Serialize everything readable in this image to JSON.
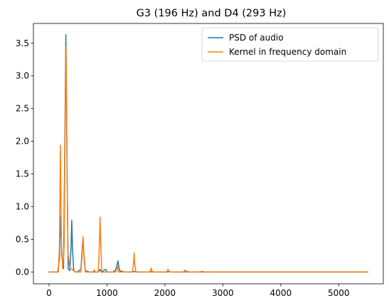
{
  "chart_data": {
    "type": "line",
    "title": "G3 (196 Hz) and D4 (293 Hz)",
    "xlabel": "",
    "ylabel": "",
    "xlim": [
      -270,
      5770
    ],
    "ylim": [
      -0.181,
      3.802
    ],
    "xticks": [
      0,
      1000,
      2000,
      3000,
      4000,
      5000
    ],
    "xtick_labels": [
      "0",
      "1000",
      "2000",
      "3000",
      "4000",
      "5000"
    ],
    "yticks": [
      0.0,
      0.5,
      1.0,
      1.5,
      2.0,
      2.5,
      3.0,
      3.5
    ],
    "ytick_labels": [
      "0.0",
      "0.5",
      "1.0",
      "1.5",
      "2.0",
      "2.5",
      "3.0",
      "3.5"
    ],
    "grid": false,
    "legend": {
      "position": "top-right"
    },
    "series": [
      {
        "name": "PSD of audio",
        "color": "#1f77b4",
        "x": [
          0,
          150,
          180,
          200,
          220,
          250,
          270,
          290,
          310,
          330,
          360,
          380,
          392,
          405,
          425,
          450,
          480,
          550,
          575,
          587,
          600,
          625,
          700,
          850,
          880,
          900,
          930,
          950,
          980,
          1000,
          1030,
          1100,
          1150,
          1175,
          1190,
          1200,
          1220,
          1300,
          1450,
          1470,
          1500,
          1750,
          1770,
          1800,
          2050,
          2070,
          2100,
          2350,
          2380,
          2410,
          2700,
          5500
        ],
        "y": [
          0.0,
          0.0,
          0.2,
          0.85,
          0.25,
          0.05,
          1.8,
          3.63,
          1.6,
          0.05,
          0.02,
          0.4,
          0.79,
          0.35,
          0.03,
          0.0,
          0.0,
          0.04,
          0.4,
          0.52,
          0.3,
          0.02,
          0.0,
          0.0,
          0.04,
          0.0,
          0.0,
          0.03,
          0.04,
          0.0,
          0.0,
          0.0,
          0.03,
          0.12,
          0.17,
          0.1,
          0.02,
          0.0,
          0.0,
          0.01,
          0.0,
          0.0,
          0.01,
          0.0,
          0.0,
          0.01,
          0.0,
          0.0,
          0.01,
          0.0,
          0.0,
          0.0
        ]
      },
      {
        "name": "Kernel in frequency domain",
        "color": "#ff7f0e",
        "x": [
          0,
          160,
          180,
          196,
          212,
          235,
          260,
          280,
          293,
          306,
          325,
          360,
          392,
          420,
          450,
          550,
          570,
          587,
          605,
          625,
          700,
          760,
          780,
          800,
          850,
          870,
          880,
          890,
          910,
          950,
          1100,
          1150,
          1170,
          1175,
          1185,
          1200,
          1300,
          1440,
          1460,
          1468,
          1478,
          1500,
          1600,
          1740,
          1762,
          1785,
          1900,
          2030,
          2055,
          2080,
          2200,
          2320,
          2349,
          2375,
          2600,
          2642,
          2680,
          2800,
          5500
        ],
        "y": [
          0.0,
          0.0,
          0.4,
          1.94,
          0.5,
          0.05,
          0.4,
          2.5,
          3.45,
          2.2,
          0.3,
          0.05,
          0.05,
          0.02,
          0.0,
          0.0,
          0.25,
          0.54,
          0.2,
          0.0,
          0.0,
          0.0,
          0.03,
          0.0,
          0.0,
          0.45,
          0.84,
          0.5,
          0.02,
          0.0,
          0.0,
          0.0,
          0.06,
          0.1,
          0.06,
          0.0,
          0.0,
          0.0,
          0.15,
          0.29,
          0.12,
          0.0,
          0.0,
          0.0,
          0.06,
          0.0,
          0.0,
          0.0,
          0.04,
          0.0,
          0.0,
          0.0,
          0.03,
          0.0,
          0.0,
          0.01,
          0.0,
          0.0,
          0.0
        ]
      }
    ]
  }
}
